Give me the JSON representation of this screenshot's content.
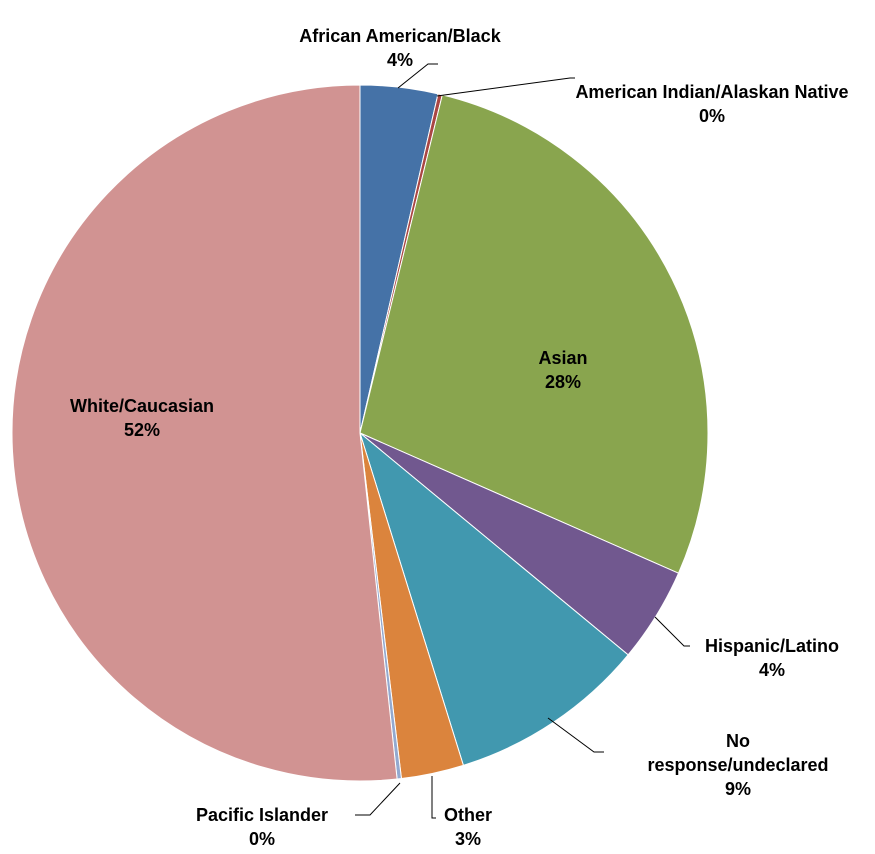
{
  "chart_data": {
    "type": "pie",
    "categories": [
      "African American/Black",
      "American Indian/Alaskan Native",
      "Asian",
      "Hispanic/Latino",
      "No response/undeclared",
      "Other",
      "Pacific Islander",
      "White/Caucasian"
    ],
    "values": [
      3.6,
      0.2,
      27.8,
      4.4,
      9.2,
      2.9,
      0.2,
      51.7
    ],
    "value_labels": [
      "4%",
      "0%",
      "28%",
      "4%",
      "9%",
      "3%",
      "0%",
      "52%"
    ],
    "colors": [
      "#4572a7",
      "#aa4643",
      "#89a54e",
      "#71588f",
      "#4198af",
      "#db843d",
      "#93a9cf",
      "#d19392"
    ]
  }
}
